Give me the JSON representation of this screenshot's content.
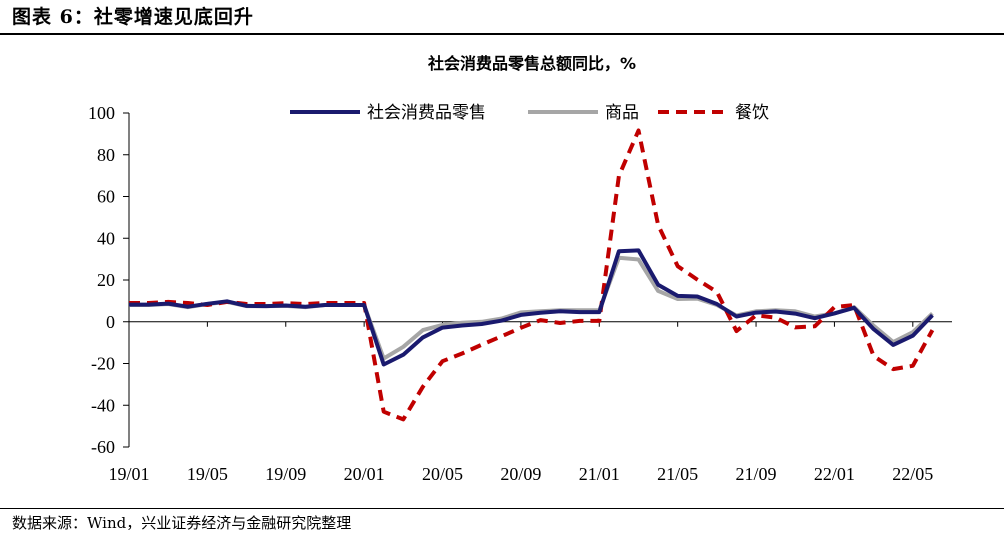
{
  "figure": {
    "header": "图表 6：社零增速见底回升",
    "source": "数据来源：Wind，兴业证券经济与金融研究院整理"
  },
  "chart_data": {
    "type": "line",
    "title": "社会消费品零售总额同比，%",
    "xlabel": "",
    "ylabel": "",
    "ylim": [
      -60,
      100
    ],
    "yticks": [
      100,
      80,
      60,
      40,
      20,
      0,
      -20,
      -40,
      -60
    ],
    "x": [
      "19/01",
      "19/02",
      "19/03",
      "19/04",
      "19/05",
      "19/06",
      "19/07",
      "19/08",
      "19/09",
      "19/10",
      "19/11",
      "19/12",
      "20/01",
      "20/02",
      "20/03",
      "20/04",
      "20/05",
      "20/06",
      "20/07",
      "20/08",
      "20/09",
      "20/10",
      "20/11",
      "20/12",
      "21/01",
      "21/02",
      "21/03",
      "21/04",
      "21/05",
      "21/06",
      "21/07",
      "21/08",
      "21/09",
      "21/10",
      "21/11",
      "21/12",
      "22/01",
      "22/02",
      "22/03",
      "22/04",
      "22/05",
      "22/06",
      "22/07"
    ],
    "xtick_labels": [
      "19/01",
      "19/05",
      "19/09",
      "20/01",
      "20/05",
      "20/09",
      "21/01",
      "21/05",
      "21/09",
      "22/01",
      "22/05"
    ],
    "legend_position": "top",
    "grid": false,
    "series": [
      {
        "name": "社会消费品零售",
        "color": "#1a1a6e",
        "style": "solid",
        "values": [
          8.2,
          8.2,
          8.7,
          7.2,
          8.6,
          9.8,
          7.6,
          7.5,
          7.8,
          7.2,
          8.0,
          8.0,
          8.0,
          -20.5,
          -15.8,
          -7.5,
          -2.8,
          -1.8,
          -1.1,
          0.5,
          3.3,
          4.3,
          5.0,
          4.6,
          4.6,
          33.8,
          34.2,
          17.7,
          12.4,
          12.1,
          8.5,
          2.5,
          4.4,
          4.9,
          3.9,
          1.7,
          4.0,
          6.7,
          -3.5,
          -11.1,
          -6.7,
          3.1,
          null
        ]
      },
      {
        "name": "商品",
        "color": "#a6a6a6",
        "style": "solid",
        "values": [
          8.0,
          8.0,
          8.5,
          7.0,
          8.5,
          9.5,
          7.5,
          7.5,
          7.6,
          7.0,
          8.0,
          8.0,
          8.0,
          -17.6,
          -12.0,
          -4.0,
          -1.5,
          -0.5,
          0.0,
          1.5,
          4.5,
          5.0,
          5.5,
          5.5,
          5.5,
          30.7,
          29.8,
          14.8,
          10.9,
          11.1,
          8.0,
          3.0,
          5.0,
          5.5,
          5.0,
          2.5,
          4.0,
          7.0,
          -1.9,
          -9.7,
          -5.0,
          4.0,
          null
        ]
      },
      {
        "name": "餐饮",
        "color": "#c00000",
        "style": "dashed",
        "values": [
          9.0,
          9.0,
          9.5,
          9.0,
          8.0,
          9.5,
          8.5,
          8.5,
          8.9,
          8.5,
          9.0,
          9.0,
          9.0,
          -43.1,
          -46.8,
          -31.1,
          -18.9,
          -15.2,
          -11.0,
          -7.0,
          -2.9,
          0.8,
          -0.6,
          0.4,
          0.4,
          69.8,
          91.6,
          46.4,
          26.6,
          20.2,
          14.3,
          -4.5,
          3.1,
          2.0,
          -2.7,
          -2.2,
          7.0,
          8.0,
          -16.4,
          -22.7,
          -21.1,
          -4.0,
          null
        ]
      }
    ]
  }
}
